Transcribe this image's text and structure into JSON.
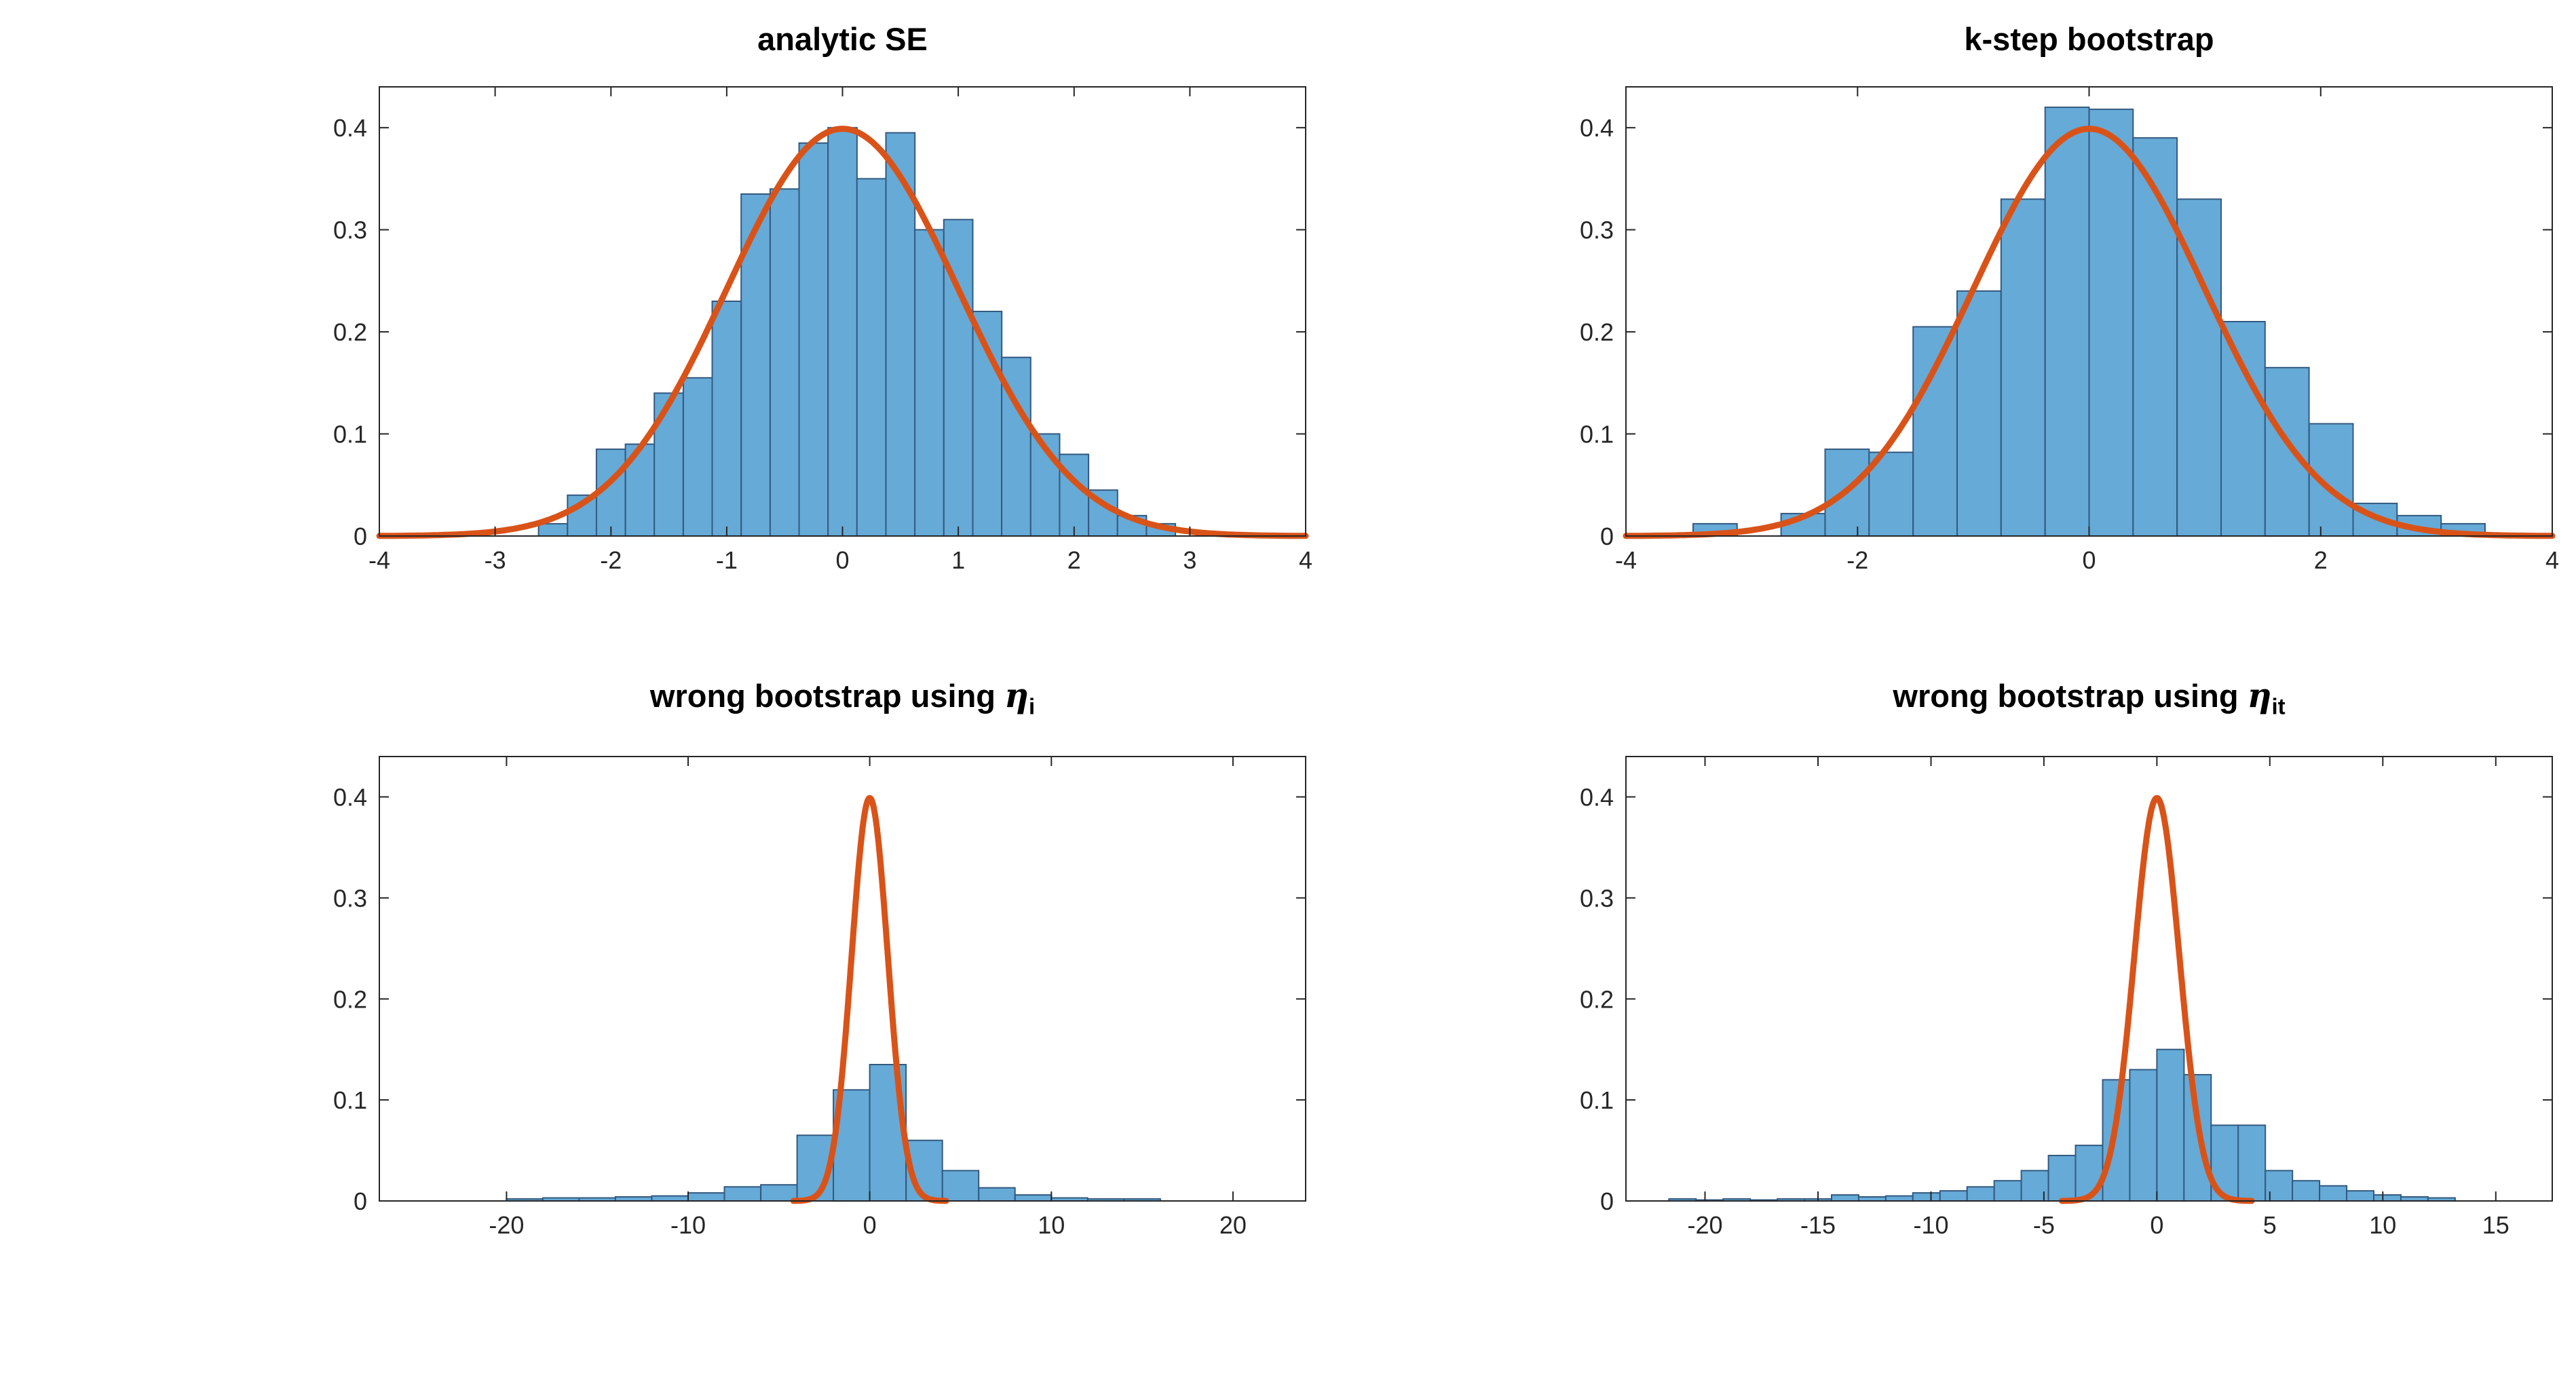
{
  "figure": {
    "background": "#ffffff"
  },
  "colors": {
    "bar_fill": "#66AAD7",
    "bar_edge": "#33597F",
    "curve": "#D95319",
    "axis": "#262626",
    "title": "#000000"
  },
  "chart_data": [
    {
      "type": "bar",
      "subtype": "histogram-with-density-curve",
      "title": {
        "prefix": "analytic SE",
        "math": "",
        "sub": ""
      },
      "xlabel": "",
      "ylabel": "",
      "xlim": [
        -4,
        4
      ],
      "ylim": [
        0,
        0.44
      ],
      "xticks": [
        -4,
        -3,
        -2,
        -1,
        0,
        1,
        2,
        3,
        4
      ],
      "yticks": [
        0,
        0.1,
        0.2,
        0.3,
        0.4
      ],
      "grid": false,
      "legend": "none",
      "bin_start": -2.625,
      "bin_width": 0.25,
      "bar_heights": [
        0.012,
        0.04,
        0.085,
        0.09,
        0.14,
        0.155,
        0.23,
        0.335,
        0.34,
        0.385,
        0.4,
        0.35,
        0.395,
        0.3,
        0.31,
        0.22,
        0.175,
        0.1,
        0.08,
        0.045,
        0.02,
        0.012
      ],
      "curve": {
        "kind": "normal_pdf",
        "mean": 0,
        "sd": 1,
        "peak": 0.3989,
        "x_range": [
          -4,
          4
        ]
      }
    },
    {
      "type": "bar",
      "subtype": "histogram-with-density-curve",
      "title": {
        "prefix": "k-step bootstrap",
        "math": "",
        "sub": ""
      },
      "xlabel": "",
      "ylabel": "",
      "xlim": [
        -4,
        4
      ],
      "ylim": [
        0,
        0.44
      ],
      "xticks": [
        -4,
        -2,
        0,
        2,
        4
      ],
      "yticks": [
        0,
        0.1,
        0.2,
        0.3,
        0.4
      ],
      "grid": false,
      "legend": "none",
      "bin_start": -3.42,
      "bin_width": 0.38,
      "bar_heights": [
        0.012,
        0,
        0.022,
        0.085,
        0.082,
        0.205,
        0.24,
        0.33,
        0.42,
        0.418,
        0.39,
        0.33,
        0.21,
        0.165,
        0.11,
        0.032,
        0.02,
        0.012
      ],
      "curve": {
        "kind": "normal_pdf",
        "mean": 0,
        "sd": 1,
        "peak": 0.3989,
        "x_range": [
          -4,
          4
        ]
      }
    },
    {
      "type": "bar",
      "subtype": "histogram-with-density-curve",
      "title": {
        "prefix": "wrong bootstrap using ",
        "math": "η",
        "sub": "i"
      },
      "xlabel": "",
      "ylabel": "",
      "xlim": [
        -27,
        24
      ],
      "ylim": [
        0,
        0.44
      ],
      "xticks": [
        -20,
        -10,
        0,
        10,
        20
      ],
      "yticks": [
        0,
        0.1,
        0.2,
        0.3,
        0.4
      ],
      "grid": false,
      "legend": "none",
      "bin_start": -20,
      "bin_width": 2,
      "bar_heights": [
        0.002,
        0.003,
        0.003,
        0.004,
        0.005,
        0.008,
        0.014,
        0.016,
        0.065,
        0.11,
        0.135,
        0.06,
        0.03,
        0.013,
        0.006,
        0.003,
        0.002,
        0.002
      ],
      "curve": {
        "kind": "normal_pdf",
        "mean": 0,
        "sd": 1,
        "peak": 0.3989,
        "x_range": [
          -4.2,
          4.2
        ]
      }
    },
    {
      "type": "bar",
      "subtype": "histogram-with-density-curve",
      "title": {
        "prefix": "wrong bootstrap using ",
        "math": "η",
        "sub": "it"
      },
      "xlabel": "",
      "ylabel": "",
      "xlim": [
        -23.5,
        17.5
      ],
      "ylim": [
        0,
        0.44
      ],
      "xticks": [
        -20,
        -15,
        -10,
        -5,
        0,
        5,
        10,
        15
      ],
      "yticks": [
        0,
        0.1,
        0.2,
        0.3,
        0.4
      ],
      "grid": false,
      "legend": "none",
      "bin_start": -21.6,
      "bin_width": 1.2,
      "bar_heights": [
        0.002,
        0.001,
        0.002,
        0.001,
        0.002,
        0.002,
        0.006,
        0.004,
        0.005,
        0.008,
        0.01,
        0.014,
        0.02,
        0.03,
        0.045,
        0.055,
        0.12,
        0.13,
        0.15,
        0.125,
        0.075,
        0.075,
        0.03,
        0.02,
        0.015,
        0.01,
        0.006,
        0.004,
        0.003
      ],
      "curve": {
        "kind": "normal_pdf",
        "mean": 0,
        "sd": 1,
        "peak": 0.3989,
        "x_range": [
          -4.2,
          4.2
        ]
      }
    }
  ]
}
